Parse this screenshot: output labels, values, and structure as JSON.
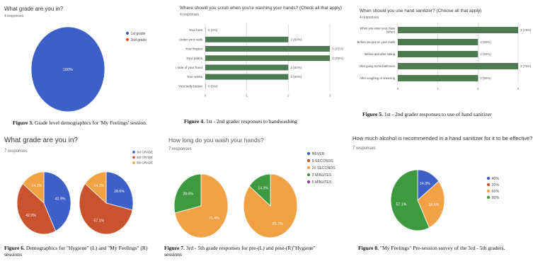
{
  "chart_data": [
    {
      "id": "fig3",
      "type": "pie",
      "title": "What grade are you in?",
      "subtitle": "4 responses",
      "categories": [
        "1st grade",
        "2nd grade"
      ],
      "values": [
        100,
        0
      ],
      "slice_labels": [
        "100%",
        ""
      ],
      "colors": [
        "#3c5fc8",
        "#d8532e"
      ],
      "legend": "right",
      "caption_bold": "Figure 3.",
      "caption": " Grade level demographics for 'My Feelings' session."
    },
    {
      "id": "fig4",
      "type": "bar",
      "orientation": "horizontal",
      "title": "Where should you scrub when you're washing your hands? (Check all that apply)",
      "subtitle": "4 responses",
      "categories": [
        "Your toes",
        "Under your nails",
        "Your fingers",
        "Your palms",
        "The back side of your hand",
        "Your wrists",
        "Your belly button"
      ],
      "values": [
        0,
        2,
        3,
        3,
        2,
        2,
        0
      ],
      "value_labels": [
        "0 (0%)",
        "2 (50%)",
        "3 (75%)",
        "3 (75%)",
        "2 (50%)",
        "2 (50%)",
        "0 (0%)"
      ],
      "xlim": [
        0,
        3
      ],
      "xticks": [
        "0",
        "1",
        "2",
        "3"
      ],
      "grid": true,
      "color": "#4e7a52",
      "caption_bold": "Figure 4.",
      "caption": " 1st - 2nd grader responses to handwashing"
    },
    {
      "id": "fig5",
      "type": "bar",
      "orientation": "horizontal",
      "title": "When should you use hand sanitizer? (Choose all that apply)",
      "subtitle": "4 responses",
      "categories": [
        "When you enter your classroom",
        "Before you put on your mask",
        "Before and after eating",
        "After going to the bathroom",
        "After coughing or sneezing"
      ],
      "category_lines": [
        [
          "When you enter your class",
          "(other)"
        ],
        [
          "Before you put on your mask"
        ],
        [
          "Before and after eating"
        ],
        [
          "After going to the bathroom"
        ],
        [
          "After coughing or sneezing"
        ]
      ],
      "values": [
        3,
        2,
        2,
        3,
        2
      ],
      "value_labels": [
        "3 (75%)",
        "2 (50%)",
        "2 (50%)",
        "3 (75%)",
        "2 (50%)"
      ],
      "xlim": [
        0,
        3
      ],
      "xticks": [
        "0",
        "1",
        "2",
        "3"
      ],
      "grid": true,
      "color": "#4e7a52",
      "caption_bold": "Figure 5.",
      "caption": " 1st - 2nd grader responses to use of hand sanitizer"
    },
    {
      "id": "fig6",
      "type": "pie",
      "title": "What grade are you in?",
      "subtitle": "7 responses",
      "categories": [
        "3rd GRADE",
        "4th GRADE",
        "5th GRADE"
      ],
      "colors": [
        "#3c5fc8",
        "#c9532e",
        "#f0a244"
      ],
      "legend": "top-right",
      "pies": [
        {
          "name": "L",
          "values": [
            42.9,
            42.9,
            14.3
          ],
          "slice_labels": [
            "42.9%",
            "42.9%",
            "14.3%"
          ]
        },
        {
          "name": "R",
          "values": [
            28.6,
            57.1,
            14.3
          ],
          "slice_labels": [
            "28.6%",
            "57.1%",
            "14.3%"
          ]
        }
      ],
      "caption_bold": "Figure 6.",
      "caption": " Demographics for \"Hygiene\" (L) and \"My Feelings\" (R) sessions"
    },
    {
      "id": "fig7",
      "type": "pie",
      "title": "How long do you wash your hands?",
      "subtitle": "7 responses",
      "categories": [
        "NEVER",
        "5 SECONDS",
        "20 SECONDS",
        "2 MINUTES",
        "5 MINUTES"
      ],
      "colors": [
        "#3c5fc8",
        "#c9532e",
        "#f0a244",
        "#3e9a40",
        "#9638a5"
      ],
      "legend": "top-right",
      "pies": [
        {
          "name": "pre (L)",
          "values": [
            0,
            0,
            71.4,
            28.6,
            0
          ],
          "slice_labels": [
            "",
            "",
            "71.4%",
            "28.6%",
            ""
          ]
        },
        {
          "name": "post (R)",
          "values": [
            0,
            0,
            85.7,
            14.3,
            0
          ],
          "slice_labels": [
            "",
            "",
            "85.7%",
            "14.3%",
            ""
          ]
        }
      ],
      "caption_bold": "Figure 7.",
      "caption": " 3rd - 5th grade responses for pre-(L) and post-(R)\"Hygiene\" sessions"
    },
    {
      "id": "fig8",
      "type": "pie",
      "title": "How much alcohol is recommended in a hand sanitizer for it to be effective?",
      "subtitle": "7 responses",
      "categories": [
        "40%",
        "20%",
        "60%",
        "90%"
      ],
      "values": [
        14.3,
        0,
        28.6,
        57.1
      ],
      "slice_labels": [
        "14.3%",
        "",
        "28.6%",
        "57.1%"
      ],
      "colors": [
        "#3c5fc8",
        "#c9532e",
        "#f0a244",
        "#3e9a40"
      ],
      "legend": "right",
      "caption_bold": "Figure 8.",
      "caption": " \"My Feelings\" Pre-session survey of the 3rd - 5th graders."
    }
  ]
}
